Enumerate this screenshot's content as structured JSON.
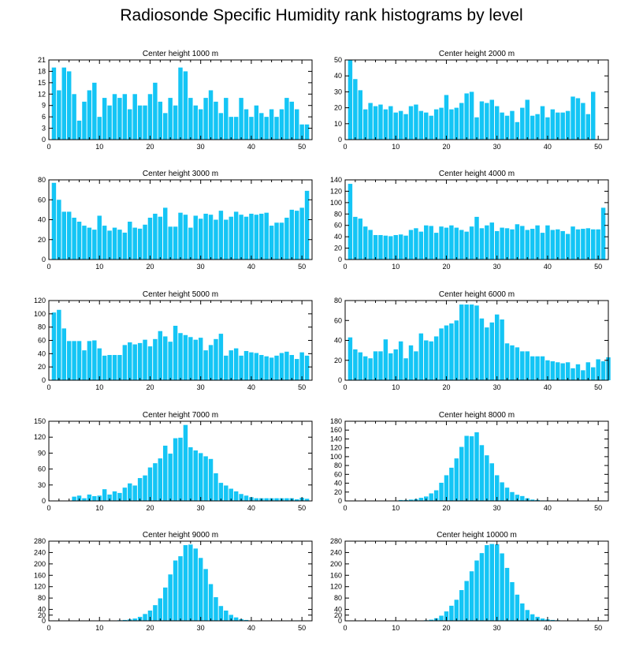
{
  "title": "Radiosonde Specific Humidity rank histograms by level",
  "colors": {
    "bar": "#14C5F5",
    "axis": "#000000"
  },
  "chart_data": [
    {
      "type": "bar",
      "title": "Center height 1000 m",
      "xlim": [
        0,
        52
      ],
      "ylim": [
        0,
        21
      ],
      "xticks": [
        0,
        10,
        20,
        30,
        40,
        50
      ],
      "yticks": [
        0,
        3,
        6,
        9,
        12,
        15,
        18,
        21
      ],
      "values": [
        19,
        13,
        19,
        18,
        12,
        5,
        10,
        13,
        15,
        6,
        11,
        9,
        12,
        11,
        12,
        8,
        12,
        9,
        9,
        12,
        15,
        10,
        7,
        11,
        9,
        19,
        18,
        11,
        9,
        8,
        11,
        13,
        10,
        7,
        11,
        6,
        6,
        11,
        8,
        6,
        9,
        7,
        6,
        8,
        6,
        8,
        11,
        10,
        8,
        4,
        4
      ]
    },
    {
      "type": "bar",
      "title": "Center height 2000 m",
      "xlim": [
        0,
        52
      ],
      "ylim": [
        0,
        50
      ],
      "xticks": [
        0,
        10,
        20,
        30,
        40,
        50
      ],
      "yticks": [
        0,
        10,
        20,
        30,
        40,
        50
      ],
      "values": [
        50,
        38,
        31,
        19,
        23,
        21,
        22,
        19,
        21,
        17,
        18,
        16,
        21,
        22,
        18,
        17,
        15,
        19,
        20,
        28,
        19,
        20,
        23,
        29,
        30,
        14,
        24,
        23,
        25,
        21,
        17,
        15,
        18,
        11,
        20,
        25,
        15,
        16,
        21,
        14,
        19,
        17,
        17,
        18,
        27,
        26,
        23,
        16,
        30
      ]
    },
    {
      "type": "bar",
      "title": "Center height 3000 m",
      "xlim": [
        0,
        52
      ],
      "ylim": [
        0,
        80
      ],
      "xticks": [
        0,
        10,
        20,
        30,
        40,
        50
      ],
      "yticks": [
        0,
        20,
        40,
        60,
        80
      ],
      "values": [
        77,
        60,
        48,
        48,
        42,
        38,
        34,
        32,
        30,
        44,
        34,
        29,
        32,
        30,
        27,
        38,
        32,
        31,
        35,
        42,
        46,
        43,
        52,
        33,
        33,
        47,
        45,
        32,
        44,
        41,
        46,
        45,
        40,
        49,
        40,
        43,
        48,
        45,
        43,
        46,
        45,
        46,
        47,
        34,
        37,
        37,
        42,
        50,
        49,
        52,
        69
      ]
    },
    {
      "type": "bar",
      "title": "Center height 4000 m",
      "xlim": [
        0,
        52
      ],
      "ylim": [
        0,
        140
      ],
      "xticks": [
        0,
        10,
        20,
        30,
        40,
        50
      ],
      "yticks": [
        0,
        20,
        40,
        60,
        80,
        100,
        120,
        140
      ],
      "values": [
        133,
        75,
        72,
        58,
        52,
        43,
        43,
        42,
        41,
        43,
        44,
        42,
        52,
        55,
        49,
        60,
        59,
        47,
        58,
        56,
        60,
        56,
        52,
        49,
        58,
        75,
        55,
        60,
        65,
        50,
        56,
        55,
        53,
        62,
        59,
        52,
        54,
        60,
        47,
        60,
        52,
        53,
        50,
        45,
        58,
        53,
        54,
        55,
        53,
        53,
        91
      ]
    },
    {
      "type": "bar",
      "title": "Center height 5000 m",
      "xlim": [
        0,
        52
      ],
      "ylim": [
        0,
        120
      ],
      "xticks": [
        0,
        10,
        20,
        30,
        40,
        50
      ],
      "yticks": [
        0,
        20,
        40,
        60,
        80,
        100,
        120
      ],
      "values": [
        102,
        106,
        78,
        59,
        59,
        59,
        45,
        59,
        60,
        48,
        37,
        38,
        38,
        38,
        53,
        57,
        54,
        56,
        61,
        51,
        62,
        74,
        66,
        58,
        82,
        71,
        68,
        65,
        61,
        64,
        45,
        53,
        62,
        70,
        37,
        45,
        48,
        37,
        44,
        42,
        41,
        38,
        36,
        34,
        37,
        41,
        43,
        38,
        32,
        42,
        37
      ]
    },
    {
      "type": "bar",
      "title": "Center height 6000 m",
      "xlim": [
        0,
        52
      ],
      "ylim": [
        0,
        80
      ],
      "xticks": [
        0,
        10,
        20,
        30,
        40,
        50
      ],
      "yticks": [
        0,
        20,
        40,
        60,
        80
      ],
      "values": [
        43,
        31,
        28,
        24,
        22,
        29,
        29,
        41,
        27,
        31,
        39,
        22,
        35,
        29,
        47,
        40,
        39,
        44,
        52,
        55,
        57,
        60,
        76,
        76,
        76,
        75,
        62,
        53,
        58,
        66,
        61,
        37,
        35,
        33,
        29,
        29,
        24,
        24,
        24,
        20,
        19,
        18,
        17,
        18,
        12,
        16,
        10,
        18,
        13,
        21,
        19,
        23
      ]
    },
    {
      "type": "bar",
      "title": "Center height 7000 m",
      "xlim": [
        0,
        52
      ],
      "ylim": [
        0,
        150
      ],
      "xticks": [
        0,
        10,
        20,
        30,
        40,
        50
      ],
      "yticks": [
        0,
        30,
        60,
        90,
        120,
        150
      ],
      "values": [
        0,
        0,
        0,
        0,
        8,
        10,
        5,
        12,
        9,
        10,
        22,
        12,
        18,
        15,
        25,
        33,
        29,
        43,
        48,
        63,
        71,
        80,
        104,
        89,
        118,
        119,
        143,
        101,
        95,
        90,
        84,
        79,
        52,
        34,
        29,
        23,
        18,
        13,
        10,
        7,
        5,
        5,
        5,
        5,
        5,
        5,
        5,
        5,
        3,
        6,
        4
      ]
    },
    {
      "type": "bar",
      "title": "Center height 8000 m",
      "xlim": [
        0,
        52
      ],
      "ylim": [
        0,
        180
      ],
      "xticks": [
        0,
        10,
        20,
        30,
        40,
        50
      ],
      "yticks": [
        0,
        20,
        40,
        60,
        80,
        100,
        120,
        140,
        160,
        180
      ],
      "values": [
        0,
        0,
        0,
        0,
        0,
        0,
        0,
        0,
        0,
        0,
        2,
        2,
        3,
        4,
        7,
        10,
        17,
        24,
        41,
        58,
        75,
        96,
        122,
        147,
        146,
        155,
        126,
        103,
        85,
        58,
        42,
        30,
        20,
        14,
        11,
        6,
        3,
        2,
        1,
        1,
        0,
        0,
        0,
        0,
        0,
        0,
        0,
        0,
        0,
        0,
        0,
        0
      ]
    },
    {
      "type": "bar",
      "title": "Center height 9000 m",
      "xlim": [
        0,
        52
      ],
      "ylim": [
        0,
        280
      ],
      "xticks": [
        0,
        10,
        20,
        30,
        40,
        50
      ],
      "yticks": [
        0,
        20,
        40,
        80,
        120,
        160,
        200,
        240,
        280
      ],
      "values": [
        0,
        0,
        0,
        0,
        0,
        0,
        0,
        0,
        0,
        0,
        0,
        0,
        0,
        2,
        3,
        5,
        8,
        14,
        24,
        36,
        55,
        79,
        117,
        163,
        212,
        227,
        266,
        268,
        254,
        221,
        182,
        129,
        83,
        52,
        36,
        21,
        12,
        6,
        3,
        1,
        1,
        0,
        0,
        0,
        0,
        0,
        0,
        0,
        0,
        0,
        0,
        0
      ]
    },
    {
      "type": "bar",
      "title": "Center height 10000 m",
      "xlim": [
        0,
        52
      ],
      "ylim": [
        0,
        280
      ],
      "xticks": [
        0,
        10,
        20,
        30,
        40,
        50
      ],
      "yticks": [
        0,
        20,
        40,
        80,
        120,
        160,
        200,
        240,
        280
      ],
      "values": [
        0,
        0,
        0,
        0,
        0,
        0,
        0,
        0,
        0,
        0,
        0,
        0,
        0,
        0,
        0,
        2,
        4,
        9,
        18,
        33,
        53,
        74,
        108,
        140,
        174,
        212,
        238,
        266,
        270,
        269,
        237,
        186,
        136,
        92,
        61,
        38,
        23,
        14,
        8,
        5,
        3,
        2,
        1,
        1,
        0,
        0,
        0,
        0,
        0,
        0,
        0,
        0
      ]
    }
  ]
}
